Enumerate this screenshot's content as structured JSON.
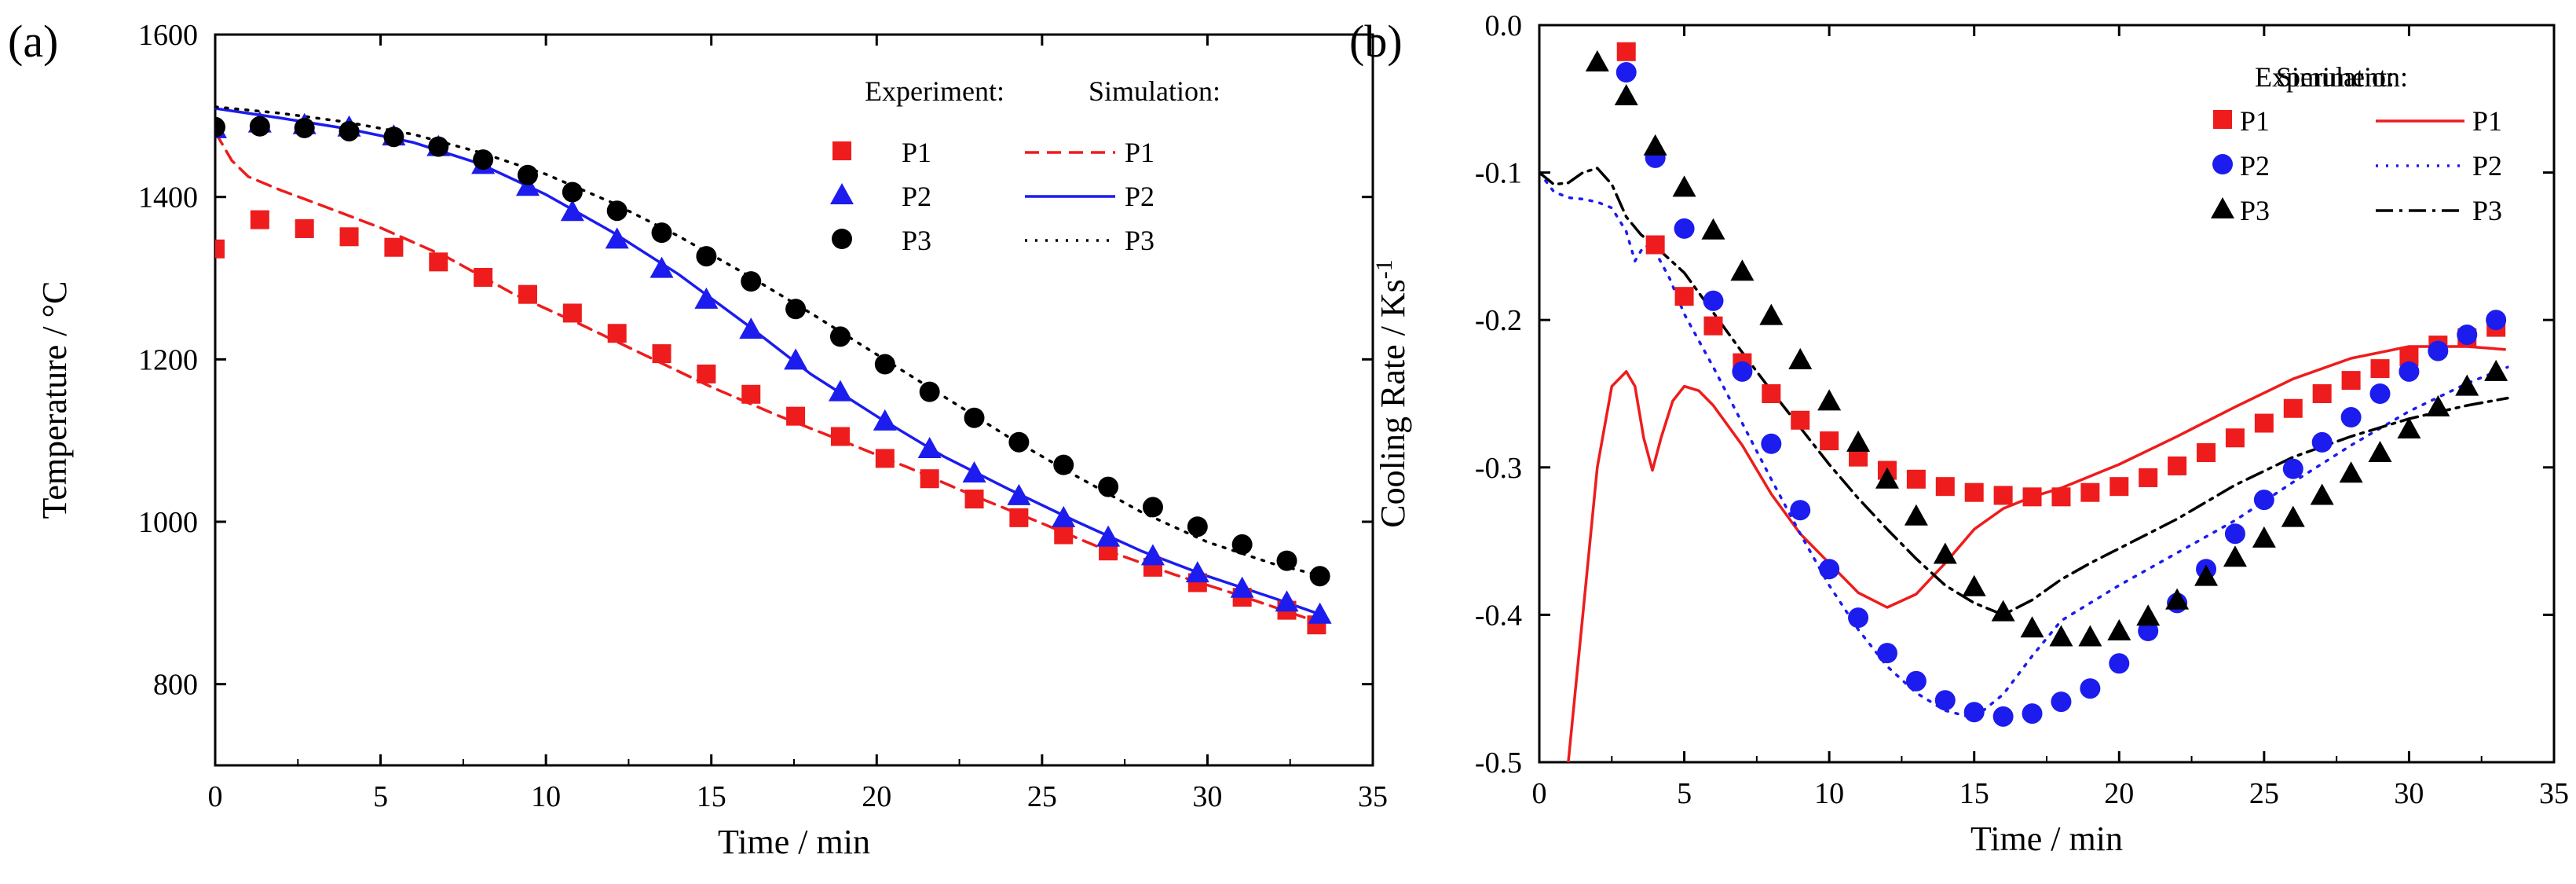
{
  "colors": {
    "P1": "#ee1c1c",
    "P2": "#1c1cee",
    "P3": "#000000"
  },
  "chart_data": [
    {
      "panel": "(a)",
      "type": "scatter",
      "xlabel": "Time / min",
      "ylabel": "Temperature / °C",
      "xlim": [
        0,
        35
      ],
      "ylim": [
        700,
        1600
      ],
      "xticks": [
        0,
        5,
        10,
        15,
        20,
        25,
        30,
        35
      ],
      "yticks": [
        800,
        1000,
        1200,
        1400,
        1600
      ],
      "legend": {
        "placement": "top-right",
        "experiment_title": "Experiment:",
        "simulation_title": "Simulation:"
      },
      "experiment": [
        {
          "name": "P1",
          "marker": "square",
          "color": "#ee1c1c",
          "x": [
            0,
            1.35,
            2.7,
            4.05,
            5.4,
            6.75,
            8.1,
            9.45,
            10.8,
            12.15,
            13.5,
            14.85,
            16.2,
            17.55,
            18.9,
            20.25,
            21.6,
            22.95,
            24.3,
            25.65,
            27.0,
            28.35,
            29.7,
            31.05,
            32.4,
            33.3
          ],
          "y": [
            1336,
            1372,
            1361,
            1351,
            1338,
            1320,
            1301,
            1280,
            1257,
            1232,
            1207,
            1182,
            1157,
            1130,
            1105,
            1078,
            1053,
            1028,
            1005,
            984,
            964,
            944,
            925,
            907,
            891,
            873
          ]
        },
        {
          "name": "P2",
          "marker": "triangle",
          "color": "#1c1cee",
          "x": [
            0,
            1.35,
            2.7,
            4.05,
            5.4,
            6.75,
            8.1,
            9.45,
            10.8,
            12.15,
            13.5,
            14.85,
            16.2,
            17.55,
            18.9,
            20.25,
            21.6,
            22.95,
            24.3,
            25.65,
            27.0,
            28.35,
            29.7,
            31.05,
            32.4,
            33.4
          ],
          "y": [
            1484,
            1491,
            1489,
            1486,
            1475,
            1462,
            1440,
            1413,
            1382,
            1348,
            1312,
            1274,
            1237,
            1199,
            1160,
            1124,
            1090,
            1060,
            1032,
            1005,
            981,
            958,
            937,
            918,
            901,
            886
          ]
        },
        {
          "name": "P3",
          "marker": "circle",
          "color": "#000000",
          "x": [
            0,
            1.35,
            2.7,
            4.05,
            5.4,
            6.75,
            8.1,
            9.45,
            10.8,
            12.15,
            13.5,
            14.85,
            16.2,
            17.55,
            18.9,
            20.25,
            21.6,
            22.95,
            24.3,
            25.65,
            27.0,
            28.35,
            29.7,
            31.05,
            32.4,
            33.4
          ],
          "y": [
            1486,
            1487,
            1485,
            1481,
            1474,
            1462,
            1446,
            1427,
            1406,
            1383,
            1356,
            1327,
            1296,
            1262,
            1228,
            1194,
            1160,
            1128,
            1098,
            1070,
            1043,
            1018,
            994,
            972,
            952,
            933
          ]
        }
      ],
      "simulation": [
        {
          "name": "P1",
          "style": "dashed",
          "color": "#ee1c1c",
          "x": [
            0,
            0.5,
            1,
            2,
            3,
            5,
            7,
            9,
            11,
            13,
            15,
            17,
            19,
            21,
            23,
            25,
            27,
            29,
            31,
            33.3
          ],
          "y": [
            1480,
            1445,
            1425,
            1408,
            1393,
            1362,
            1326,
            1281,
            1244,
            1205,
            1166,
            1131,
            1099,
            1066,
            1031,
            998,
            964,
            935,
            909,
            877
          ]
        },
        {
          "name": "P2",
          "style": "solid",
          "color": "#1c1cee",
          "x": [
            0,
            2,
            4,
            6,
            8,
            10,
            12,
            14,
            16,
            18,
            20,
            22,
            24,
            26,
            28,
            30,
            32,
            33.4
          ],
          "y": [
            1509,
            1497,
            1484,
            1467,
            1441,
            1403,
            1357,
            1305,
            1245,
            1182,
            1130,
            1081,
            1040,
            1001,
            964,
            933,
            906,
            886
          ]
        },
        {
          "name": "P3",
          "style": "dotted",
          "color": "#000000",
          "x": [
            0,
            2,
            4,
            6,
            8,
            10,
            12,
            14,
            16,
            18,
            20,
            22,
            24,
            26,
            28,
            30,
            32,
            33.4
          ],
          "y": [
            1511,
            1503,
            1492,
            1477,
            1455,
            1428,
            1393,
            1352,
            1306,
            1257,
            1206,
            1155,
            1104,
            1057,
            1012,
            975,
            948,
            934
          ]
        }
      ]
    },
    {
      "panel": "(b)",
      "type": "scatter",
      "xlabel": "Time / min",
      "ylabel": "Cooling Rate / Ks",
      "ylabel_sup": "-1",
      "xlim": [
        0,
        35
      ],
      "ylim": [
        -0.5,
        0.0
      ],
      "xticks": [
        0,
        5,
        10,
        15,
        20,
        25,
        30,
        35
      ],
      "yticks": [
        0.0,
        -0.1,
        -0.2,
        -0.3,
        -0.4,
        -0.5
      ],
      "ytick_labels": [
        "0.0",
        "-0.1",
        "-0.2",
        "-0.3",
        "-0.4",
        "-0.5"
      ],
      "legend": {
        "placement": "top-right",
        "experiment_title": "Experiment:",
        "simulation_title": "Simulation:"
      },
      "experiment": [
        {
          "name": "P1",
          "marker": "square",
          "color": "#ee1c1c",
          "x": [
            3,
            4,
            5,
            6,
            7,
            8,
            9,
            10,
            11,
            12,
            13,
            14,
            15,
            16,
            17,
            18,
            19,
            20,
            21,
            22,
            23,
            24,
            25,
            26,
            27,
            28,
            29,
            30,
            31,
            32,
            33
          ],
          "y": [
            -0.018,
            -0.149,
            -0.184,
            -0.204,
            -0.229,
            -0.25,
            -0.268,
            -0.282,
            -0.293,
            -0.302,
            -0.308,
            -0.313,
            -0.317,
            -0.319,
            -0.32,
            -0.32,
            -0.317,
            -0.313,
            -0.307,
            -0.299,
            -0.29,
            -0.28,
            -0.27,
            -0.26,
            -0.25,
            -0.241,
            -0.233,
            -0.225,
            -0.217,
            -0.212,
            -0.205
          ]
        },
        {
          "name": "P2",
          "marker": "circle",
          "color": "#1c1cee",
          "x": [
            3,
            4,
            5,
            6,
            7,
            8,
            9,
            10,
            11,
            12,
            13,
            14,
            15,
            16,
            17,
            18,
            19,
            20,
            21,
            22,
            23,
            24,
            25,
            26,
            27,
            28,
            29,
            30,
            31,
            32,
            33
          ],
          "y": [
            -0.032,
            -0.09,
            -0.138,
            -0.187,
            -0.235,
            -0.284,
            -0.329,
            -0.369,
            -0.402,
            -0.426,
            -0.445,
            -0.458,
            -0.466,
            -0.469,
            -0.467,
            -0.459,
            -0.45,
            -0.433,
            -0.411,
            -0.392,
            -0.369,
            -0.345,
            -0.322,
            -0.301,
            -0.283,
            -0.266,
            -0.25,
            -0.235,
            -0.221,
            -0.21,
            -0.2
          ]
        },
        {
          "name": "P3",
          "marker": "triangle",
          "color": "#000000",
          "x": [
            2,
            3,
            4,
            5,
            6,
            7,
            8,
            9,
            10,
            11,
            12,
            13,
            14,
            15,
            16,
            17,
            18,
            19,
            20,
            21,
            22,
            23,
            24,
            25,
            26,
            27,
            28,
            29,
            30,
            31,
            32,
            33
          ],
          "y": [
            -0.025,
            -0.048,
            -0.082,
            -0.11,
            -0.139,
            -0.167,
            -0.197,
            -0.227,
            -0.255,
            -0.283,
            -0.308,
            -0.333,
            -0.359,
            -0.381,
            -0.398,
            -0.409,
            -0.415,
            -0.415,
            -0.411,
            -0.401,
            -0.39,
            -0.374,
            -0.361,
            -0.348,
            -0.334,
            -0.319,
            -0.304,
            -0.29,
            -0.274,
            -0.259,
            -0.245,
            -0.235
          ]
        }
      ],
      "simulation": [
        {
          "name": "P1",
          "style": "solid",
          "color": "#ee1c1c",
          "x": [
            1.0,
            1.5,
            2.0,
            2.5,
            3.0,
            3.3,
            3.6,
            3.9,
            4.2,
            4.6,
            5.0,
            5.5,
            6.0,
            7.0,
            8.0,
            9.0,
            10.0,
            11.0,
            12.0,
            13.0,
            14.0,
            15.0,
            16.0,
            17.0,
            18.0,
            20.0,
            22.0,
            24.0,
            26.0,
            28.0,
            30.0,
            32.0,
            33.3
          ],
          "y": [
            -0.5,
            -0.4,
            -0.3,
            -0.245,
            -0.235,
            -0.245,
            -0.28,
            -0.302,
            -0.28,
            -0.255,
            -0.245,
            -0.248,
            -0.258,
            -0.285,
            -0.318,
            -0.345,
            -0.365,
            -0.385,
            -0.395,
            -0.386,
            -0.365,
            -0.342,
            -0.328,
            -0.32,
            -0.314,
            -0.298,
            -0.279,
            -0.259,
            -0.24,
            -0.226,
            -0.218,
            -0.218,
            -0.22
          ]
        },
        {
          "name": "P2",
          "style": "dotted",
          "color": "#1c1cee",
          "x": [
            0.0,
            0.5,
            1.0,
            1.5,
            2.0,
            2.5,
            3.0,
            3.3,
            3.6,
            3.9,
            4.5,
            5.0,
            6.0,
            7.0,
            8.0,
            9.0,
            10.0,
            11.0,
            12.0,
            13.0,
            14.0,
            15.0,
            16.0,
            17.0,
            18.0,
            20.0,
            22.0,
            24.0,
            26.0,
            28.0,
            30.0,
            32.0,
            33.4
          ],
          "y": [
            -0.1,
            -0.113,
            -0.117,
            -0.118,
            -0.12,
            -0.124,
            -0.14,
            -0.16,
            -0.15,
            -0.15,
            -0.172,
            -0.196,
            -0.232,
            -0.27,
            -0.308,
            -0.345,
            -0.38,
            -0.41,
            -0.435,
            -0.453,
            -0.465,
            -0.47,
            -0.454,
            -0.428,
            -0.404,
            -0.38,
            -0.358,
            -0.336,
            -0.31,
            -0.285,
            -0.262,
            -0.243,
            -0.232
          ]
        },
        {
          "name": "P3",
          "style": "dashdot",
          "color": "#000000",
          "x": [
            0.0,
            0.5,
            1.0,
            1.5,
            2.0,
            2.5,
            3.0,
            3.5,
            4.0,
            5.0,
            6.0,
            7.0,
            8.0,
            9.0,
            10.0,
            11.0,
            12.0,
            13.0,
            14.0,
            15.0,
            16.0,
            17.0,
            18.0,
            19.0,
            20.0,
            22.0,
            24.0,
            26.0,
            28.0,
            30.0,
            32.0,
            33.4
          ],
          "y": [
            -0.1,
            -0.108,
            -0.107,
            -0.1,
            -0.097,
            -0.108,
            -0.13,
            -0.142,
            -0.15,
            -0.168,
            -0.195,
            -0.222,
            -0.248,
            -0.273,
            -0.298,
            -0.321,
            -0.342,
            -0.362,
            -0.38,
            -0.392,
            -0.4,
            -0.39,
            -0.376,
            -0.365,
            -0.355,
            -0.335,
            -0.312,
            -0.293,
            -0.279,
            -0.267,
            -0.258,
            -0.253
          ]
        }
      ]
    }
  ]
}
